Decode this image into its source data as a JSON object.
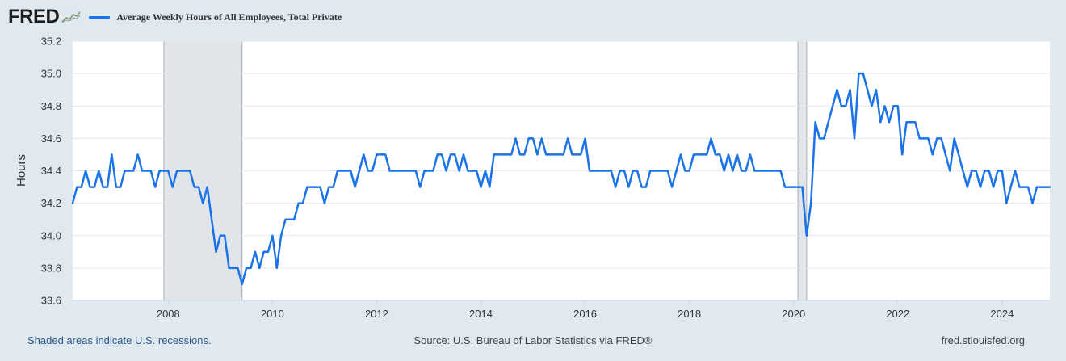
{
  "header": {
    "logo": "FRED",
    "logo_icon": "line-chart-icon",
    "series_name": "Average Weekly Hours of All Employees, Total Private",
    "series_color": "#1a73e8"
  },
  "chart_data": {
    "type": "line",
    "title": "Average Weekly Hours of All Employees, Total Private",
    "ylabel": "Hours",
    "xlabel": "",
    "ylim": [
      33.6,
      35.2
    ],
    "xlim": [
      "2006-03",
      "2024-12"
    ],
    "yticks": [
      "33.6",
      "33.8",
      "34.0",
      "34.2",
      "34.4",
      "34.6",
      "34.8",
      "35.0",
      "35.2"
    ],
    "xticks": [
      "2008",
      "2010",
      "2012",
      "2014",
      "2016",
      "2018",
      "2020",
      "2022",
      "2024"
    ],
    "grid": true,
    "legend_position": "top",
    "recessions": [
      {
        "start": "2007-12",
        "end": "2009-06"
      },
      {
        "start": "2020-02",
        "end": "2020-04"
      }
    ],
    "series": [
      {
        "name": "Average Weekly Hours of All Employees, Total Private",
        "color": "#1a73e8",
        "points": [
          [
            "2006-03",
            34.2
          ],
          [
            "2006-04",
            34.3
          ],
          [
            "2006-05",
            34.3
          ],
          [
            "2006-06",
            34.4
          ],
          [
            "2006-07",
            34.3
          ],
          [
            "2006-08",
            34.3
          ],
          [
            "2006-09",
            34.4
          ],
          [
            "2006-10",
            34.3
          ],
          [
            "2006-11",
            34.3
          ],
          [
            "2006-12",
            34.5
          ],
          [
            "2007-01",
            34.3
          ],
          [
            "2007-02",
            34.3
          ],
          [
            "2007-03",
            34.4
          ],
          [
            "2007-04",
            34.4
          ],
          [
            "2007-05",
            34.4
          ],
          [
            "2007-06",
            34.5
          ],
          [
            "2007-07",
            34.4
          ],
          [
            "2007-08",
            34.4
          ],
          [
            "2007-09",
            34.4
          ],
          [
            "2007-10",
            34.3
          ],
          [
            "2007-11",
            34.4
          ],
          [
            "2007-12",
            34.4
          ],
          [
            "2008-01",
            34.4
          ],
          [
            "2008-02",
            34.3
          ],
          [
            "2008-03",
            34.4
          ],
          [
            "2008-04",
            34.4
          ],
          [
            "2008-05",
            34.4
          ],
          [
            "2008-06",
            34.4
          ],
          [
            "2008-07",
            34.3
          ],
          [
            "2008-08",
            34.3
          ],
          [
            "2008-09",
            34.2
          ],
          [
            "2008-10",
            34.3
          ],
          [
            "2008-11",
            34.1
          ],
          [
            "2008-12",
            33.9
          ],
          [
            "2009-01",
            34.0
          ],
          [
            "2009-02",
            34.0
          ],
          [
            "2009-03",
            33.8
          ],
          [
            "2009-04",
            33.8
          ],
          [
            "2009-05",
            33.8
          ],
          [
            "2009-06",
            33.7
          ],
          [
            "2009-07",
            33.8
          ],
          [
            "2009-08",
            33.8
          ],
          [
            "2009-09",
            33.9
          ],
          [
            "2009-10",
            33.8
          ],
          [
            "2009-11",
            33.9
          ],
          [
            "2009-12",
            33.9
          ],
          [
            "2010-01",
            34.0
          ],
          [
            "2010-02",
            33.8
          ],
          [
            "2010-03",
            34.0
          ],
          [
            "2010-04",
            34.1
          ],
          [
            "2010-05",
            34.1
          ],
          [
            "2010-06",
            34.1
          ],
          [
            "2010-07",
            34.2
          ],
          [
            "2010-08",
            34.2
          ],
          [
            "2010-09",
            34.3
          ],
          [
            "2010-10",
            34.3
          ],
          [
            "2010-11",
            34.3
          ],
          [
            "2010-12",
            34.3
          ],
          [
            "2011-01",
            34.2
          ],
          [
            "2011-02",
            34.3
          ],
          [
            "2011-03",
            34.3
          ],
          [
            "2011-04",
            34.4
          ],
          [
            "2011-05",
            34.4
          ],
          [
            "2011-06",
            34.4
          ],
          [
            "2011-07",
            34.4
          ],
          [
            "2011-08",
            34.3
          ],
          [
            "2011-09",
            34.4
          ],
          [
            "2011-10",
            34.5
          ],
          [
            "2011-11",
            34.4
          ],
          [
            "2011-12",
            34.4
          ],
          [
            "2012-01",
            34.5
          ],
          [
            "2012-02",
            34.5
          ],
          [
            "2012-03",
            34.5
          ],
          [
            "2012-04",
            34.4
          ],
          [
            "2012-05",
            34.4
          ],
          [
            "2012-06",
            34.4
          ],
          [
            "2012-07",
            34.4
          ],
          [
            "2012-08",
            34.4
          ],
          [
            "2012-09",
            34.4
          ],
          [
            "2012-10",
            34.4
          ],
          [
            "2012-11",
            34.3
          ],
          [
            "2012-12",
            34.4
          ],
          [
            "2013-01",
            34.4
          ],
          [
            "2013-02",
            34.4
          ],
          [
            "2013-03",
            34.5
          ],
          [
            "2013-04",
            34.5
          ],
          [
            "2013-05",
            34.4
          ],
          [
            "2013-06",
            34.5
          ],
          [
            "2013-07",
            34.5
          ],
          [
            "2013-08",
            34.4
          ],
          [
            "2013-09",
            34.5
          ],
          [
            "2013-10",
            34.4
          ],
          [
            "2013-11",
            34.4
          ],
          [
            "2013-12",
            34.4
          ],
          [
            "2014-01",
            34.3
          ],
          [
            "2014-02",
            34.4
          ],
          [
            "2014-03",
            34.3
          ],
          [
            "2014-04",
            34.5
          ],
          [
            "2014-05",
            34.5
          ],
          [
            "2014-06",
            34.5
          ],
          [
            "2014-07",
            34.5
          ],
          [
            "2014-08",
            34.5
          ],
          [
            "2014-09",
            34.6
          ],
          [
            "2014-10",
            34.5
          ],
          [
            "2014-11",
            34.5
          ],
          [
            "2014-12",
            34.6
          ],
          [
            "2015-01",
            34.6
          ],
          [
            "2015-02",
            34.5
          ],
          [
            "2015-03",
            34.6
          ],
          [
            "2015-04",
            34.5
          ],
          [
            "2015-05",
            34.5
          ],
          [
            "2015-06",
            34.5
          ],
          [
            "2015-07",
            34.5
          ],
          [
            "2015-08",
            34.5
          ],
          [
            "2015-09",
            34.6
          ],
          [
            "2015-10",
            34.5
          ],
          [
            "2015-11",
            34.5
          ],
          [
            "2015-12",
            34.5
          ],
          [
            "2016-01",
            34.6
          ],
          [
            "2016-02",
            34.4
          ],
          [
            "2016-03",
            34.4
          ],
          [
            "2016-04",
            34.4
          ],
          [
            "2016-05",
            34.4
          ],
          [
            "2016-06",
            34.4
          ],
          [
            "2016-07",
            34.4
          ],
          [
            "2016-08",
            34.3
          ],
          [
            "2016-09",
            34.4
          ],
          [
            "2016-10",
            34.4
          ],
          [
            "2016-11",
            34.3
          ],
          [
            "2016-12",
            34.4
          ],
          [
            "2017-01",
            34.4
          ],
          [
            "2017-02",
            34.3
          ],
          [
            "2017-03",
            34.3
          ],
          [
            "2017-04",
            34.4
          ],
          [
            "2017-05",
            34.4
          ],
          [
            "2017-06",
            34.4
          ],
          [
            "2017-07",
            34.4
          ],
          [
            "2017-08",
            34.4
          ],
          [
            "2017-09",
            34.3
          ],
          [
            "2017-10",
            34.4
          ],
          [
            "2017-11",
            34.5
          ],
          [
            "2017-12",
            34.4
          ],
          [
            "2018-01",
            34.4
          ],
          [
            "2018-02",
            34.5
          ],
          [
            "2018-03",
            34.5
          ],
          [
            "2018-04",
            34.5
          ],
          [
            "2018-05",
            34.5
          ],
          [
            "2018-06",
            34.6
          ],
          [
            "2018-07",
            34.5
          ],
          [
            "2018-08",
            34.5
          ],
          [
            "2018-09",
            34.4
          ],
          [
            "2018-10",
            34.5
          ],
          [
            "2018-11",
            34.4
          ],
          [
            "2018-12",
            34.5
          ],
          [
            "2019-01",
            34.4
          ],
          [
            "2019-02",
            34.4
          ],
          [
            "2019-03",
            34.5
          ],
          [
            "2019-04",
            34.4
          ],
          [
            "2019-05",
            34.4
          ],
          [
            "2019-06",
            34.4
          ],
          [
            "2019-07",
            34.4
          ],
          [
            "2019-08",
            34.4
          ],
          [
            "2019-09",
            34.4
          ],
          [
            "2019-10",
            34.4
          ],
          [
            "2019-11",
            34.3
          ],
          [
            "2019-12",
            34.3
          ],
          [
            "2020-01",
            34.3
          ],
          [
            "2020-02",
            34.3
          ],
          [
            "2020-03",
            34.3
          ],
          [
            "2020-04",
            34.0
          ],
          [
            "2020-05",
            34.2
          ],
          [
            "2020-06",
            34.7
          ],
          [
            "2020-07",
            34.6
          ],
          [
            "2020-08",
            34.6
          ],
          [
            "2020-09",
            34.7
          ],
          [
            "2020-10",
            34.8
          ],
          [
            "2020-11",
            34.9
          ],
          [
            "2020-12",
            34.8
          ],
          [
            "2021-01",
            34.8
          ],
          [
            "2021-02",
            34.9
          ],
          [
            "2021-03",
            34.6
          ],
          [
            "2021-04",
            35.0
          ],
          [
            "2021-05",
            35.0
          ],
          [
            "2021-06",
            34.9
          ],
          [
            "2021-07",
            34.8
          ],
          [
            "2021-08",
            34.9
          ],
          [
            "2021-09",
            34.7
          ],
          [
            "2021-10",
            34.8
          ],
          [
            "2021-11",
            34.7
          ],
          [
            "2021-12",
            34.8
          ],
          [
            "2022-01",
            34.8
          ],
          [
            "2022-02",
            34.5
          ],
          [
            "2022-03",
            34.7
          ],
          [
            "2022-04",
            34.7
          ],
          [
            "2022-05",
            34.7
          ],
          [
            "2022-06",
            34.6
          ],
          [
            "2022-07",
            34.6
          ],
          [
            "2022-08",
            34.6
          ],
          [
            "2022-09",
            34.5
          ],
          [
            "2022-10",
            34.6
          ],
          [
            "2022-11",
            34.6
          ],
          [
            "2022-12",
            34.5
          ],
          [
            "2023-01",
            34.4
          ],
          [
            "2023-02",
            34.6
          ],
          [
            "2023-03",
            34.5
          ],
          [
            "2023-04",
            34.4
          ],
          [
            "2023-05",
            34.3
          ],
          [
            "2023-06",
            34.4
          ],
          [
            "2023-07",
            34.4
          ],
          [
            "2023-08",
            34.3
          ],
          [
            "2023-09",
            34.4
          ],
          [
            "2023-10",
            34.4
          ],
          [
            "2023-11",
            34.3
          ],
          [
            "2023-12",
            34.4
          ],
          [
            "2024-01",
            34.4
          ],
          [
            "2024-02",
            34.2
          ],
          [
            "2024-03",
            34.3
          ],
          [
            "2024-04",
            34.4
          ],
          [
            "2024-05",
            34.3
          ],
          [
            "2024-06",
            34.3
          ],
          [
            "2024-07",
            34.3
          ],
          [
            "2024-08",
            34.2
          ],
          [
            "2024-09",
            34.3
          ],
          [
            "2024-10",
            34.3
          ],
          [
            "2024-11",
            34.3
          ],
          [
            "2024-12",
            34.3
          ]
        ]
      }
    ]
  },
  "footer": {
    "note": "Shaded areas indicate U.S. recessions.",
    "source": "Source: U.S. Bureau of Labor Statistics via FRED®",
    "site": "fred.stlouisfed.org"
  },
  "colors": {
    "background": "#e1e9f0",
    "plot_background": "#ffffff",
    "recession_shade": "#e1e5ea",
    "line": "#1a73e8"
  }
}
